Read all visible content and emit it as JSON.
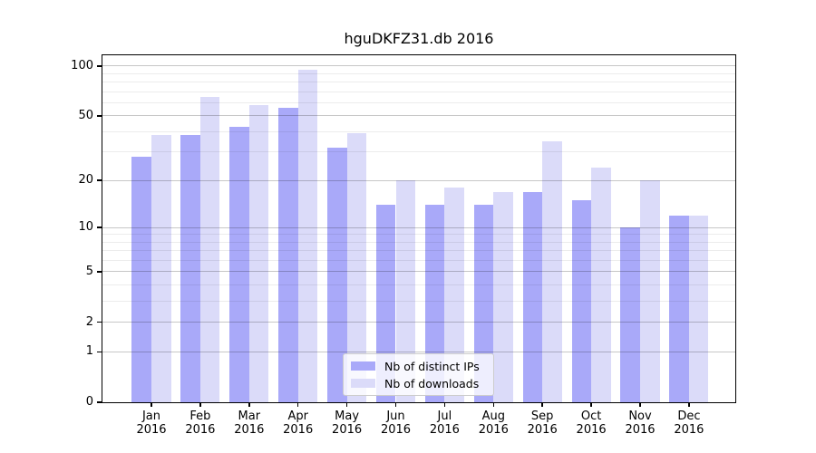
{
  "chart_data": {
    "type": "bar",
    "title": "hguDKFZ31.db 2016",
    "categories": [
      "Jan",
      "Feb",
      "Mar",
      "Apr",
      "May",
      "Jun",
      "Jul",
      "Aug",
      "Sep",
      "Oct",
      "Nov",
      "Dec"
    ],
    "x_year_label": "2016",
    "series": [
      {
        "name": "Nb of distinct IPs",
        "color": "#a9a9f9",
        "values": [
          28,
          38,
          43,
          56,
          32,
          14,
          14,
          14,
          17,
          15,
          10,
          12
        ]
      },
      {
        "name": "Nb of downloads",
        "color": "#dbdbf9",
        "values": [
          38,
          65,
          58,
          95,
          39,
          20,
          18,
          17,
          35,
          24,
          20,
          12
        ]
      }
    ],
    "yscale": "log1p",
    "ylim": [
      0,
      116
    ],
    "yticks_major": [
      0,
      1,
      2,
      5,
      10,
      20,
      50,
      100
    ],
    "yticks_minor": [
      3,
      4,
      6,
      7,
      8,
      9,
      30,
      40,
      60,
      70,
      80,
      90
    ],
    "grid": true,
    "legend_position": "inside-bottom-center"
  },
  "colors": {
    "distinct_ips": "#a9a9f9",
    "downloads": "#dbdbf9",
    "grid_minor": "rgba(0,0,0,0.075)",
    "grid_major": "rgba(0,0,0,0.22)",
    "spine": "#000000",
    "background": "#ffffff",
    "legend_border": "#cccccc"
  }
}
